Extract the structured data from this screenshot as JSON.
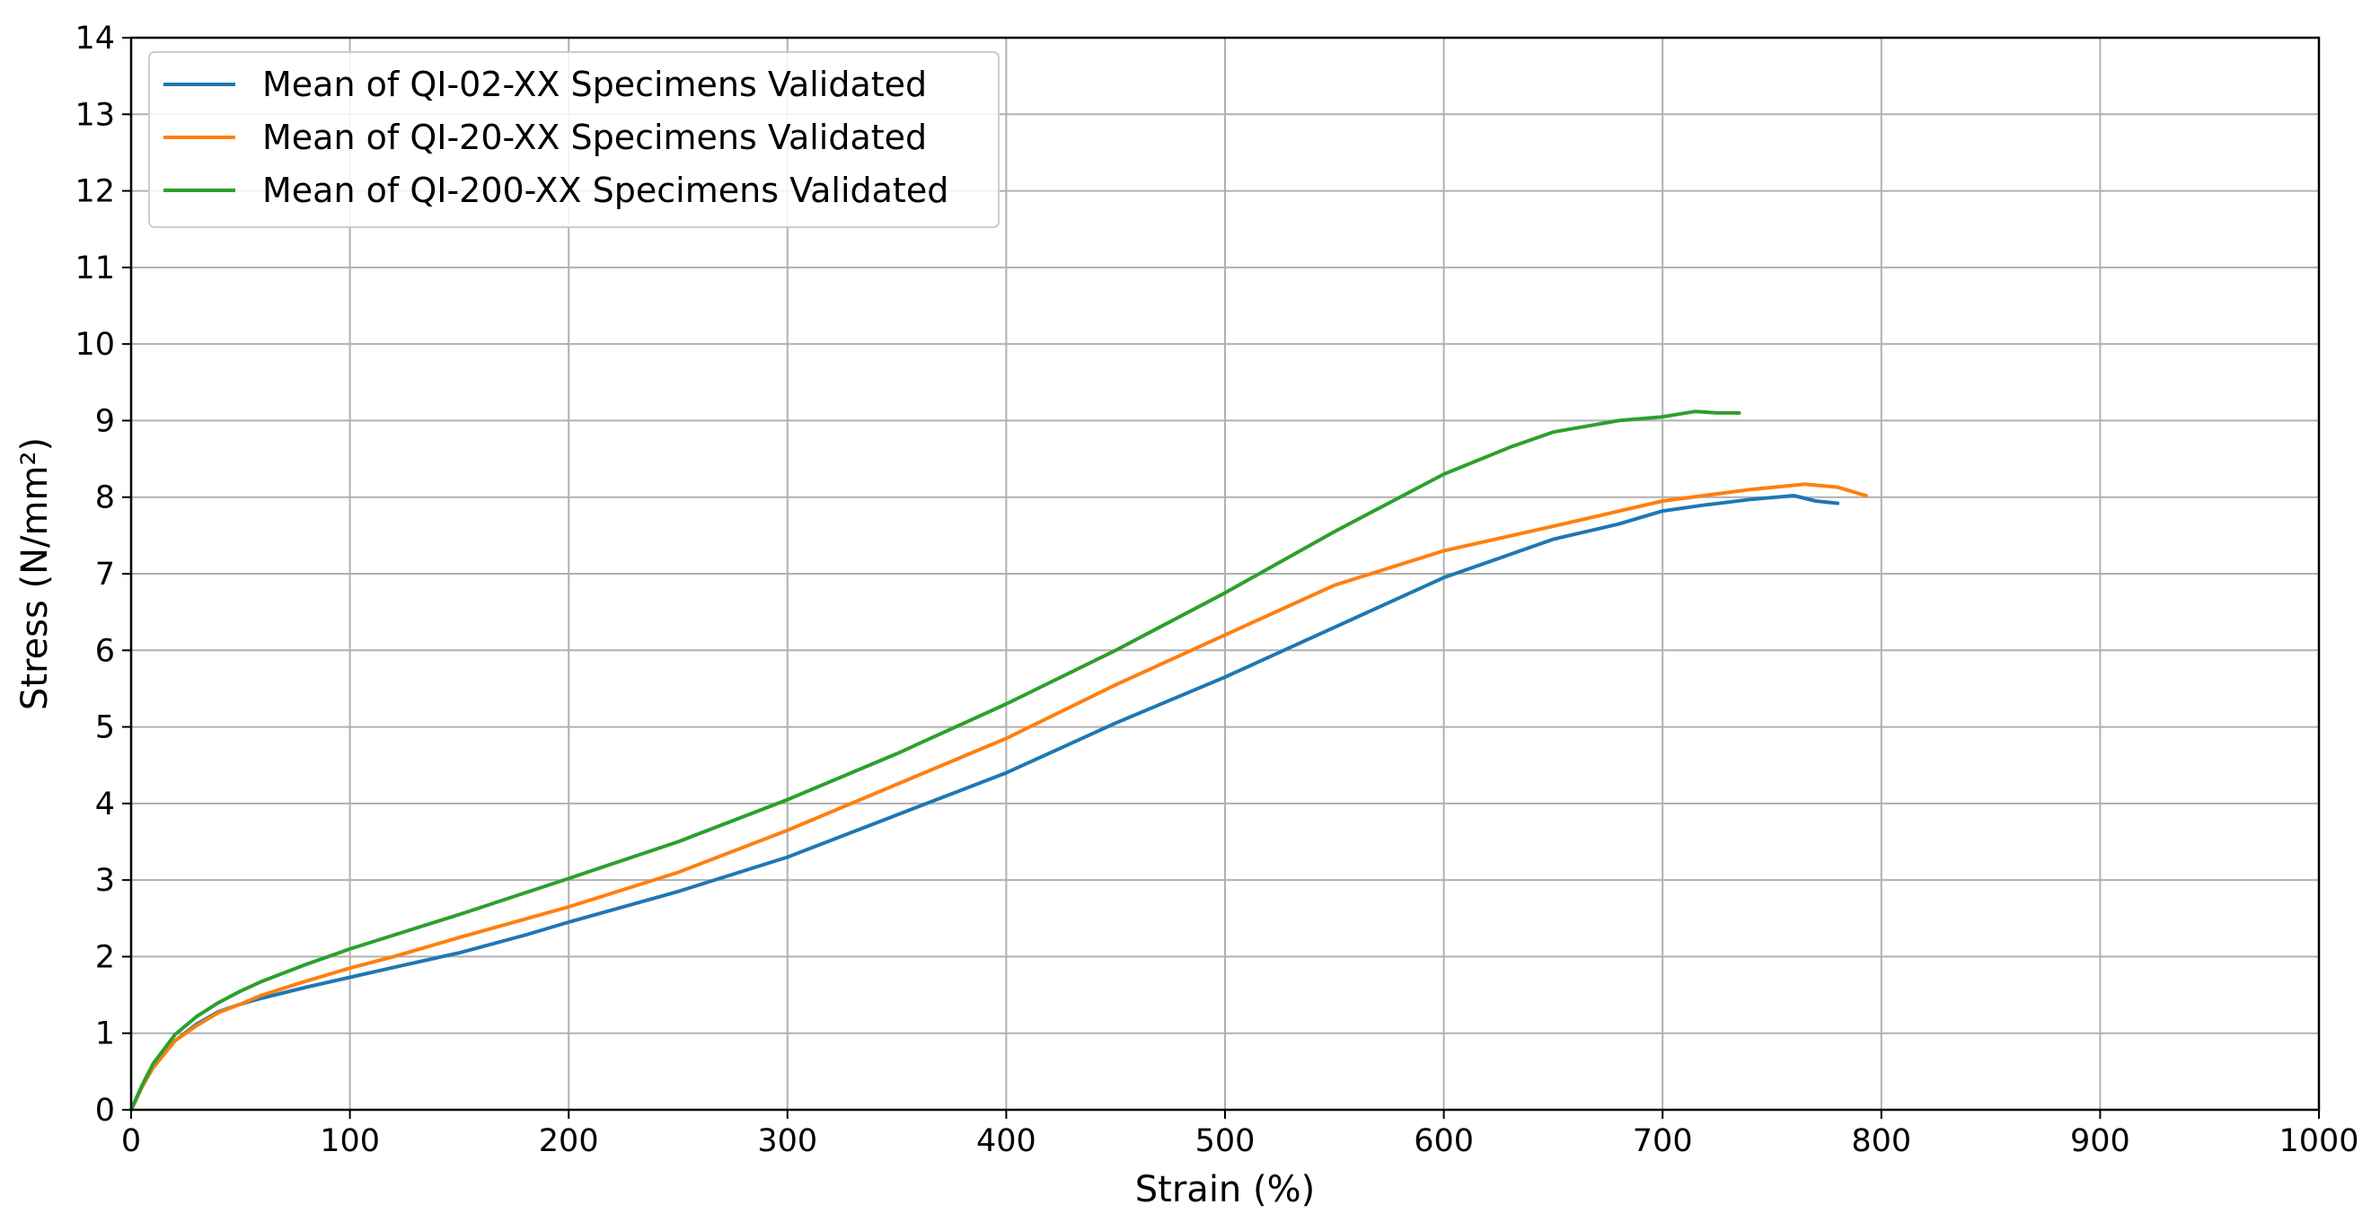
{
  "chart_data": {
    "type": "line",
    "xlabel": "Strain (%)",
    "ylabel": "Stress (N/mm²)",
    "xlim": [
      0,
      1000
    ],
    "ylim": [
      0,
      14
    ],
    "xticks": [
      0,
      100,
      200,
      300,
      400,
      500,
      600,
      700,
      800,
      900,
      1000
    ],
    "yticks": [
      0,
      1,
      2,
      3,
      4,
      5,
      6,
      7,
      8,
      9,
      10,
      11,
      12,
      13,
      14
    ],
    "grid": true,
    "legend_position": "top-left",
    "series": [
      {
        "name": "Mean of QI-02-XX Specimens Validated",
        "color": "#1f77b4",
        "x": [
          0,
          5,
          10,
          20,
          30,
          40,
          50,
          60,
          80,
          100,
          120,
          150,
          180,
          200,
          250,
          300,
          350,
          400,
          450,
          500,
          550,
          600,
          650,
          680,
          700,
          720,
          740,
          760,
          770,
          780
        ],
        "y": [
          0,
          0.3,
          0.55,
          0.9,
          1.12,
          1.28,
          1.38,
          1.46,
          1.6,
          1.73,
          1.86,
          2.05,
          2.28,
          2.45,
          2.85,
          3.3,
          3.85,
          4.4,
          5.05,
          5.65,
          6.3,
          6.95,
          7.45,
          7.65,
          7.82,
          7.9,
          7.97,
          8.02,
          7.95,
          7.92
        ]
      },
      {
        "name": "Mean of QI-20-XX Specimens Validated",
        "color": "#ff7f0e",
        "x": [
          0,
          5,
          10,
          20,
          30,
          40,
          50,
          60,
          80,
          100,
          120,
          150,
          200,
          250,
          300,
          350,
          400,
          450,
          500,
          550,
          600,
          650,
          700,
          740,
          765,
          780,
          793
        ],
        "y": [
          0,
          0.3,
          0.55,
          0.9,
          1.1,
          1.27,
          1.38,
          1.5,
          1.68,
          1.85,
          2.0,
          2.25,
          2.65,
          3.1,
          3.65,
          4.25,
          4.85,
          5.55,
          6.2,
          6.85,
          7.3,
          7.62,
          7.95,
          8.1,
          8.17,
          8.13,
          8.02
        ]
      },
      {
        "name": "Mean of QI-200-XX Specimens Validated",
        "color": "#2ca02c",
        "x": [
          0,
          5,
          10,
          20,
          30,
          40,
          50,
          60,
          80,
          100,
          120,
          150,
          200,
          250,
          300,
          350,
          400,
          450,
          500,
          550,
          600,
          630,
          650,
          680,
          700,
          715,
          725,
          735
        ],
        "y": [
          0,
          0.32,
          0.6,
          0.98,
          1.22,
          1.4,
          1.55,
          1.68,
          1.9,
          2.1,
          2.28,
          2.55,
          3.02,
          3.5,
          4.05,
          4.65,
          5.3,
          6.0,
          6.75,
          7.55,
          8.3,
          8.65,
          8.85,
          9.0,
          9.05,
          9.12,
          9.1,
          9.1
        ]
      }
    ]
  }
}
